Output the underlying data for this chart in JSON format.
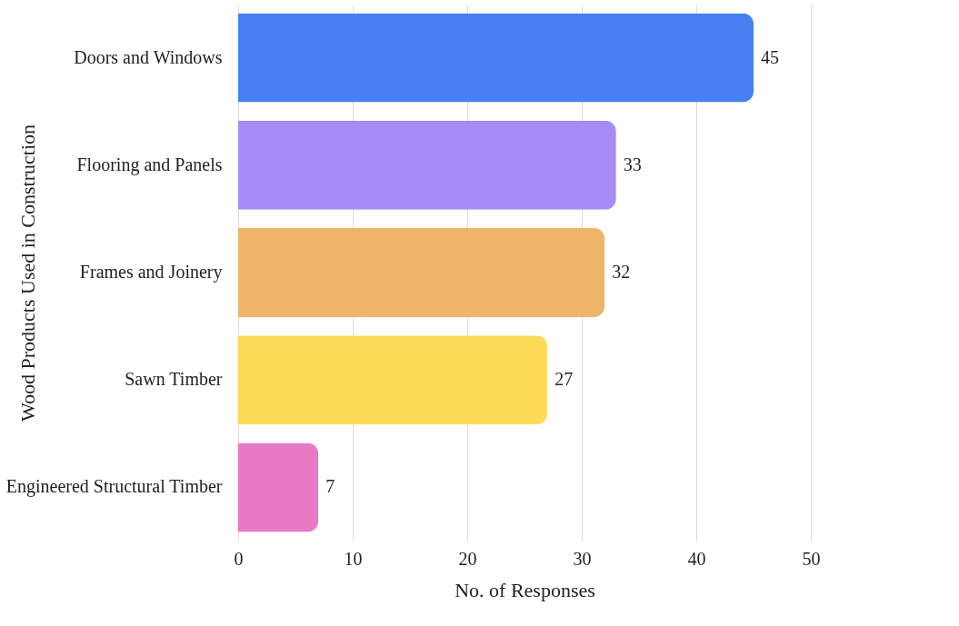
{
  "chart_data": {
    "type": "bar",
    "orientation": "horizontal",
    "xlabel": "No. of Responses",
    "ylabel": "Wood Products Used in Construction",
    "categories": [
      "Doors and Windows",
      "Flooring and Panels",
      "Frames and Joinery",
      "Sawn Timber",
      "Engineered Structural Timber"
    ],
    "values": [
      45,
      33,
      32,
      27,
      7
    ],
    "colors": [
      "#4680f3",
      "#a78bf5",
      "#eeb46a",
      "#fcdb58",
      "#e879c5"
    ],
    "xlim": [
      0,
      50
    ],
    "xticks": [
      0,
      10,
      20,
      30,
      40,
      50
    ],
    "grid": "x",
    "data_labels": true
  }
}
